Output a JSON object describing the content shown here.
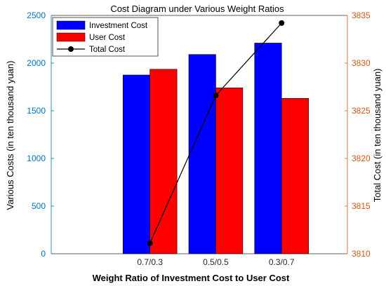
{
  "chart_data": {
    "type": "bar",
    "title": "Cost Diagram under Various Weight Ratios",
    "xlabel": "Weight Ratio of Investment Cost to User Cost",
    "categories": [
      "0.7/0.3",
      "0.5/0.5",
      "0.3/0.7"
    ],
    "left_axis": {
      "label": "Various Costs (in ten thousand yuan)",
      "ylim": [
        0,
        2500
      ],
      "ticks": [
        0,
        500,
        1000,
        1500,
        2000,
        2500
      ],
      "color": "#0072BD"
    },
    "right_axis": {
      "label": "Total Cost (in ten thousand yuan)",
      "ylim": [
        3810,
        3835
      ],
      "ticks": [
        3810,
        3815,
        3820,
        3825,
        3830,
        3835
      ],
      "color": "#D95319"
    },
    "series": [
      {
        "name": "Investment Cost",
        "type": "bar",
        "axis": "left",
        "color": "#0000FF",
        "values": [
          1875,
          2090,
          2210
        ]
      },
      {
        "name": "User Cost",
        "type": "bar",
        "axis": "left",
        "color": "#FF0000",
        "values": [
          1935,
          1740,
          1630
        ]
      },
      {
        "name": "Total Cost",
        "type": "line",
        "axis": "right",
        "color": "#000000",
        "values": [
          3811.1,
          3826.6,
          3834.2
        ]
      }
    ],
    "grid": false,
    "legend_position": "top-left"
  }
}
